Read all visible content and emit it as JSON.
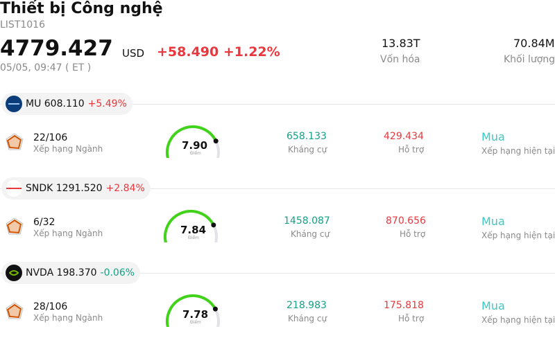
{
  "header": {
    "title": "Thiết bị Công nghệ",
    "code": "LIST1016",
    "price": "4779.427",
    "currency": "USD",
    "change": "+58.490 +1.22%",
    "time": "05/05, 09:47  ( ET )",
    "market_cap_value": "13.83T",
    "market_cap_label": "Vốn hóa",
    "volume_value": "70.84M",
    "volume_label": "Khối lượng"
  },
  "stocks": [
    {
      "ticker_price": "MU 608.110",
      "pct": "+5.49%",
      "direction": "up",
      "logo_color": "#0a3d7a",
      "rank": "22/106",
      "rank_label": "Xếp hạng Ngành",
      "score": "7.90",
      "score_value": 7.9,
      "score_label": "Điểm",
      "resistance": "658.133",
      "resistance_label": "Kháng cự",
      "support": "429.434",
      "support_label": "Hỗ trợ",
      "rating": "Mua",
      "rating_label": "Xếp hạng hiện tại"
    },
    {
      "ticker_price": "SNDK 1291.520",
      "pct": "+2.84%",
      "direction": "up",
      "logo_color": "#e8383d",
      "rank": "6/32",
      "rank_label": "Xếp hạng Ngành",
      "score": "7.84",
      "score_value": 7.84,
      "score_label": "Điểm",
      "resistance": "1458.087",
      "resistance_label": "Kháng cự",
      "support": "870.656",
      "support_label": "Hỗ trợ",
      "rating": "Mua",
      "rating_label": "Xếp hạng hiện tại"
    },
    {
      "ticker_price": "NVDA 198.370",
      "pct": "-0.06%",
      "direction": "down",
      "logo_color": "#111111",
      "rank": "28/106",
      "rank_label": "Xếp hạng Ngành",
      "score": "7.78",
      "score_value": 7.78,
      "score_label": "Điểm",
      "resistance": "218.983",
      "resistance_label": "Kháng cự",
      "support": "175.818",
      "support_label": "Hỗ trợ",
      "rating": "Mua",
      "rating_label": "Xếp hạng hiện tại"
    }
  ]
}
